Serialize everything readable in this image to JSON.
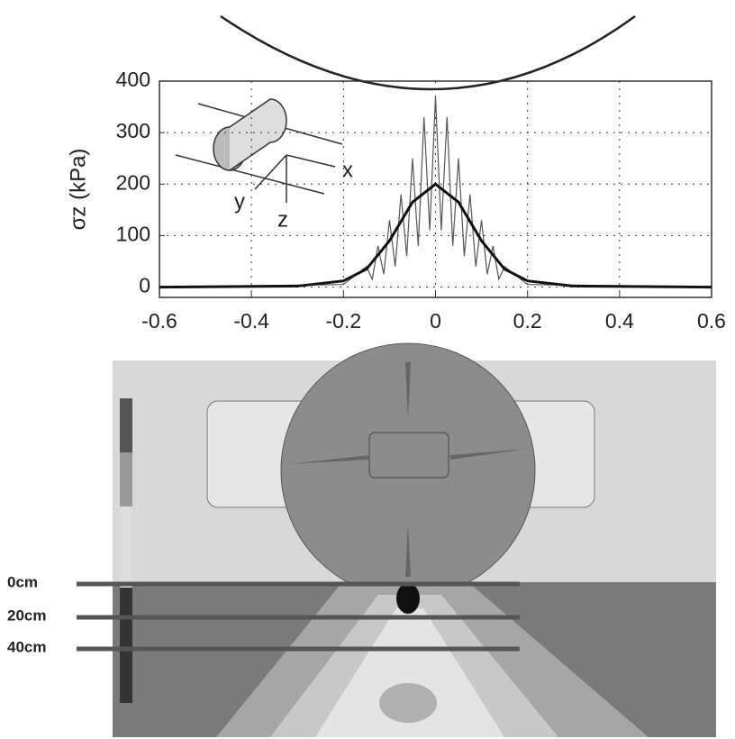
{
  "chart_data": {
    "type": "line",
    "ylabel": "σz (kPa)",
    "xlim": [
      -0.6,
      0.6
    ],
    "xticks": [
      -0.6,
      -0.4,
      -0.2,
      0,
      0.2,
      0.4,
      0.6
    ],
    "ylim": [
      -20,
      400
    ],
    "yticks": [
      0,
      100,
      200,
      300,
      400
    ],
    "grid": true,
    "inset_labels": [
      "x",
      "y",
      "z"
    ],
    "series": [
      {
        "color": "#555555",
        "width": 1.2,
        "x": [
          -0.6,
          -0.2,
          -0.15,
          -0.1375,
          -0.125,
          -0.1125,
          -0.1,
          -0.0875,
          -0.075,
          -0.0625,
          -0.05,
          -0.0375,
          -0.025,
          -0.0125,
          0,
          0.0125,
          0.025,
          0.0375,
          0.05,
          0.0625,
          0.075,
          0.0875,
          0.1,
          0.1125,
          0.125,
          0.1375,
          0.15,
          0.2,
          0.6
        ],
        "values": [
          0,
          5,
          40,
          15,
          80,
          25,
          130,
          40,
          180,
          60,
          250,
          80,
          330,
          110,
          370,
          110,
          330,
          80,
          250,
          60,
          180,
          40,
          130,
          25,
          80,
          15,
          40,
          5,
          0
        ]
      },
      {
        "color": "#111111",
        "width": 3,
        "x": [
          -0.6,
          -0.3,
          -0.2,
          -0.15,
          -0.1,
          -0.05,
          0,
          0.05,
          0.1,
          0.15,
          0.2,
          0.3,
          0.6
        ],
        "values": [
          0,
          2,
          12,
          35,
          90,
          165,
          200,
          165,
          90,
          35,
          12,
          2,
          0
        ]
      }
    ]
  },
  "fem_panel": {
    "depth_labels": [
      "0cm",
      "20cm",
      "40cm"
    ]
  }
}
